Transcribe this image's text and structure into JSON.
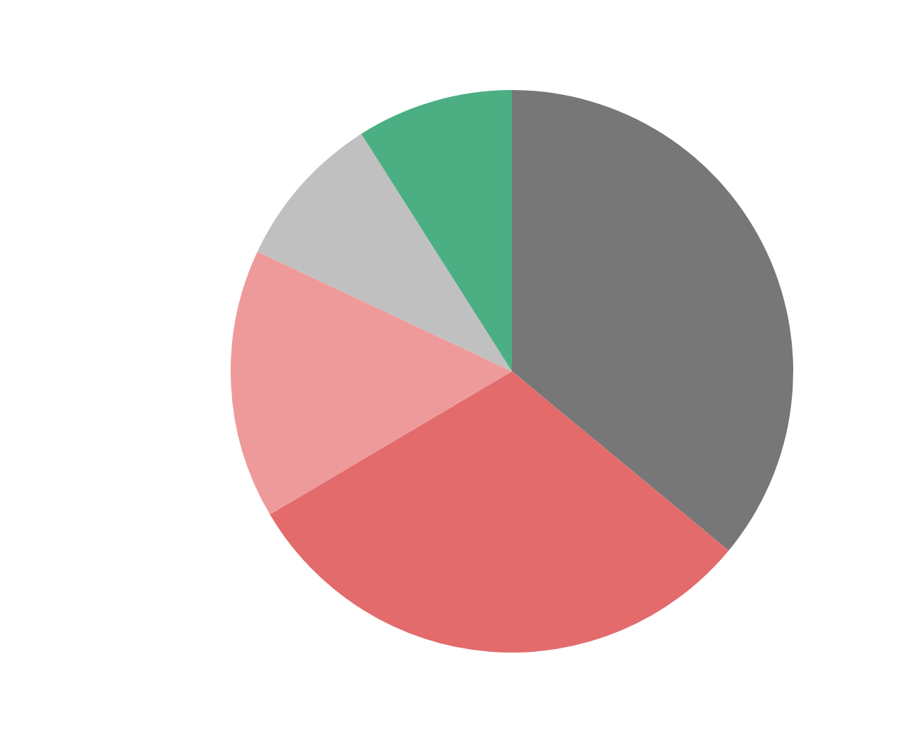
{
  "chart_data": {
    "type": "pie",
    "categories": [
      null,
      null,
      null,
      null,
      null
    ],
    "values": [
      36,
      30.5,
      15.5,
      9,
      9
    ],
    "colors": [
      "#777777",
      "#e36b6b",
      "#ee9a9b",
      "#c0c0c0",
      "#4caf84"
    ],
    "legend": false
  }
}
